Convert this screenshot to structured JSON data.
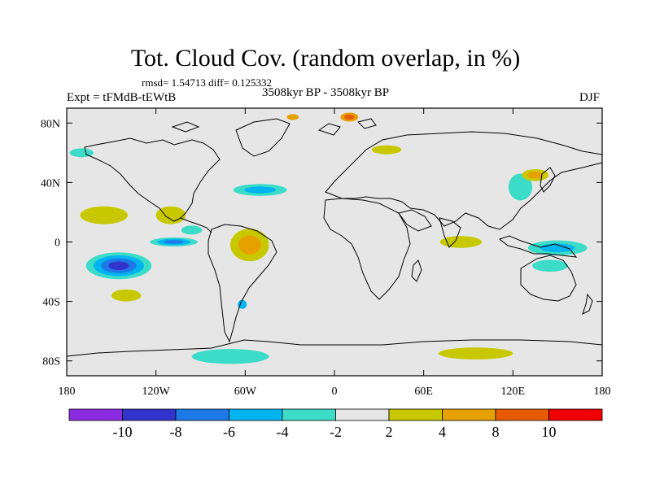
{
  "title": "Tot. Cloud Cov. (random overlap, in %)",
  "stats": "rmsd= 1.54713  diff= 0.125332",
  "experiment": "Expt = tFMdB-tEWtB",
  "period": "3508kyr BP - 3508kyr BP",
  "season": "DJF",
  "map": {
    "lon_range": [
      -180,
      180
    ],
    "lat_range": [
      -90,
      90
    ],
    "background_color": "#e6e6e6",
    "x_ticks": [
      {
        "lon": -180,
        "label": "180"
      },
      {
        "lon": -120,
        "label": "120W"
      },
      {
        "lon": -60,
        "label": "60W"
      },
      {
        "lon": 0,
        "label": "0"
      },
      {
        "lon": 60,
        "label": "60E"
      },
      {
        "lon": 120,
        "label": "120E"
      },
      {
        "lon": 180,
        "label": "180"
      }
    ],
    "y_ticks": [
      {
        "lat": 80,
        "label": "80N"
      },
      {
        "lat": 40,
        "label": "40N"
      },
      {
        "lat": 0,
        "label": "0"
      },
      {
        "lat": -40,
        "label": "40S"
      },
      {
        "lat": -80,
        "label": "80S"
      }
    ]
  },
  "colorbar": {
    "colors": [
      "#8b2be2",
      "#3232cd",
      "#1e78e6",
      "#00b4f0",
      "#3cdcc8",
      "#e6e6e6",
      "#c8c800",
      "#e6a000",
      "#e65a00",
      "#f00000"
    ],
    "labels": [
      "-10",
      "-8",
      "-6",
      "-4",
      "-2",
      "2",
      "4",
      "8",
      "10"
    ]
  },
  "anomalies": [
    {
      "name": "south-pacific-low",
      "lon": -145,
      "lat": -16,
      "rx": 22,
      "ry": 9,
      "levels": [
        "#3cdcc8",
        "#00b4f0",
        "#1e78e6",
        "#3232cd"
      ]
    },
    {
      "name": "east-pacific-low",
      "lon": -108,
      "lat": 0,
      "rx": 16,
      "ry": 3,
      "levels": [
        "#3cdcc8",
        "#00b4f0",
        "#1e78e6"
      ]
    },
    {
      "name": "amazon-high",
      "lon": -57,
      "lat": -2,
      "rx": 13,
      "ry": 11,
      "levels": [
        "#c8c800",
        "#e6a000"
      ]
    },
    {
      "name": "north-atlantic-low",
      "lon": -50,
      "lat": 35,
      "rx": 18,
      "ry": 4,
      "levels": [
        "#3cdcc8",
        "#00b4f0"
      ]
    },
    {
      "name": "atlantic-high",
      "lon": -110,
      "lat": 18,
      "rx": 10,
      "ry": 6,
      "levels": [
        "#c8c800"
      ]
    },
    {
      "name": "gulf-low",
      "lon": -96,
      "lat": 8,
      "rx": 7,
      "ry": 3,
      "levels": [
        "#3cdcc8"
      ]
    },
    {
      "name": "warm-pool-low",
      "lon": 150,
      "lat": -4,
      "rx": 20,
      "ry": 5,
      "levels": [
        "#3cdcc8",
        "#00b4f0"
      ]
    },
    {
      "name": "east-asia-low",
      "lon": 125,
      "lat": 37,
      "rx": 8,
      "ry": 9,
      "levels": [
        "#3cdcc8"
      ]
    },
    {
      "name": "kuroshio-high",
      "lon": 135,
      "lat": 45,
      "rx": 9,
      "ry": 4,
      "levels": [
        "#c8c800",
        "#e6a000"
      ]
    },
    {
      "name": "indian-high",
      "lon": 85,
      "lat": 0,
      "rx": 14,
      "ry": 4,
      "levels": [
        "#c8c800"
      ]
    },
    {
      "name": "arctic-high",
      "lon": 10,
      "lat": 84,
      "rx": 6,
      "ry": 3,
      "levels": [
        "#e6a000",
        "#e65a00"
      ]
    },
    {
      "name": "arctic-high-2",
      "lon": -28,
      "lat": 84,
      "rx": 4,
      "ry": 2,
      "levels": [
        "#e6a000"
      ]
    },
    {
      "name": "southern-ocean-low",
      "lon": -70,
      "lat": -77,
      "rx": 26,
      "ry": 5,
      "levels": [
        "#3cdcc8"
      ]
    },
    {
      "name": "southern-ocean-high",
      "lon": 95,
      "lat": -75,
      "rx": 25,
      "ry": 4,
      "levels": [
        "#c8c800"
      ]
    },
    {
      "name": "siberia-high",
      "lon": 35,
      "lat": 62,
      "rx": 10,
      "ry": 3,
      "levels": [
        "#c8c800"
      ]
    },
    {
      "name": "south-america-low",
      "lon": -62,
      "lat": -42,
      "rx": 3,
      "ry": 3,
      "levels": [
        "#00b4f0"
      ]
    },
    {
      "name": "south-pacific-high",
      "lon": -140,
      "lat": -36,
      "rx": 10,
      "ry": 4,
      "levels": [
        "#c8c800"
      ]
    },
    {
      "name": "pacific-high",
      "lon": -155,
      "lat": 18,
      "rx": 16,
      "ry": 6,
      "levels": [
        "#c8c800"
      ]
    },
    {
      "name": "australia-low",
      "lon": 145,
      "lat": -16,
      "rx": 12,
      "ry": 4,
      "levels": [
        "#3cdcc8"
      ]
    },
    {
      "name": "alaska-low",
      "lon": -170,
      "lat": 60,
      "rx": 8,
      "ry": 3,
      "levels": [
        "#3cdcc8"
      ]
    }
  ]
}
